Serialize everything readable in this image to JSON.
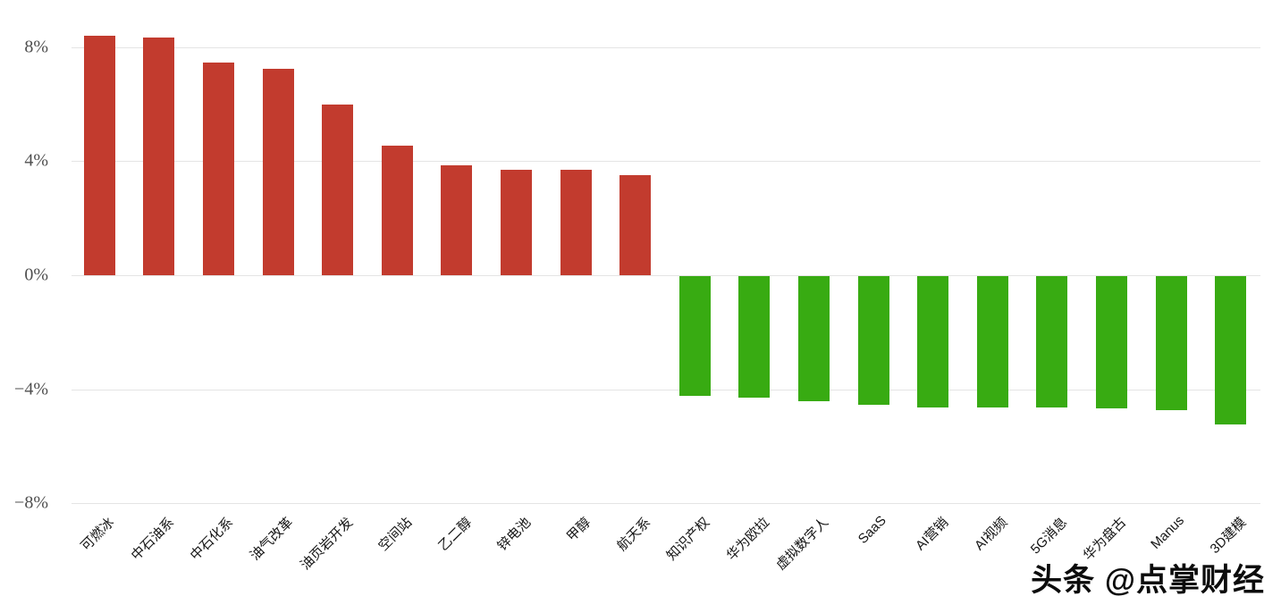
{
  "watermark": {
    "text": "头条 @点掌财经"
  },
  "chart_data": {
    "type": "bar",
    "categories": [
      "可燃冰",
      "中石油系",
      "中石化系",
      "油气改革",
      "油页岩开发",
      "空间站",
      "乙二醇",
      "锌电池",
      "甲醇",
      "航天系",
      "知识产权",
      "华为欧拉",
      "虚拟数字人",
      "SaaS",
      "AI营销",
      "AI视频",
      "5G消息",
      "华为盘古",
      "Manus",
      "3D建模"
    ],
    "values": [
      8.4,
      8.35,
      7.45,
      7.25,
      6.0,
      4.55,
      3.85,
      3.7,
      3.7,
      3.5,
      -4.2,
      -4.25,
      -4.4,
      -4.5,
      -4.6,
      -4.6,
      -4.6,
      -4.65,
      -4.7,
      -5.2
    ],
    "value_unit": "%",
    "title": "",
    "xlabel": "",
    "ylabel": "",
    "ylim": [
      -8,
      8
    ],
    "yticks": [
      {
        "value": 8,
        "label": "8%"
      },
      {
        "value": 4,
        "label": "4%"
      },
      {
        "value": 0,
        "label": "0%"
      },
      {
        "value": -4,
        "label": "−4%"
      },
      {
        "value": -8,
        "label": "−8%"
      }
    ],
    "grid": true,
    "legend": "none",
    "x_label_rotation": 45,
    "positive_color": "#c23b2e",
    "negative_color": "#38ab12"
  }
}
